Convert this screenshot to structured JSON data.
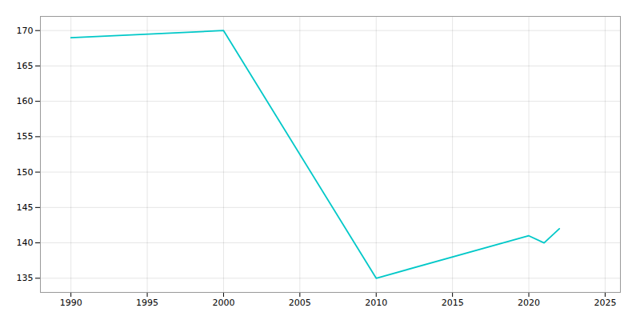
{
  "chart_data": {
    "type": "line",
    "x": [
      1990,
      2000,
      2010,
      2020,
      2021,
      2022
    ],
    "values": [
      169,
      170,
      135,
      141,
      140,
      142
    ],
    "color": "#00C8C8",
    "xlim": [
      1988,
      2026
    ],
    "ylim": [
      133,
      172
    ],
    "xticks": [
      1990,
      1995,
      2000,
      2005,
      2010,
      2015,
      2020,
      2025
    ],
    "yticks": [
      135,
      140,
      145,
      150,
      155,
      160,
      165,
      170
    ],
    "grid": true
  }
}
